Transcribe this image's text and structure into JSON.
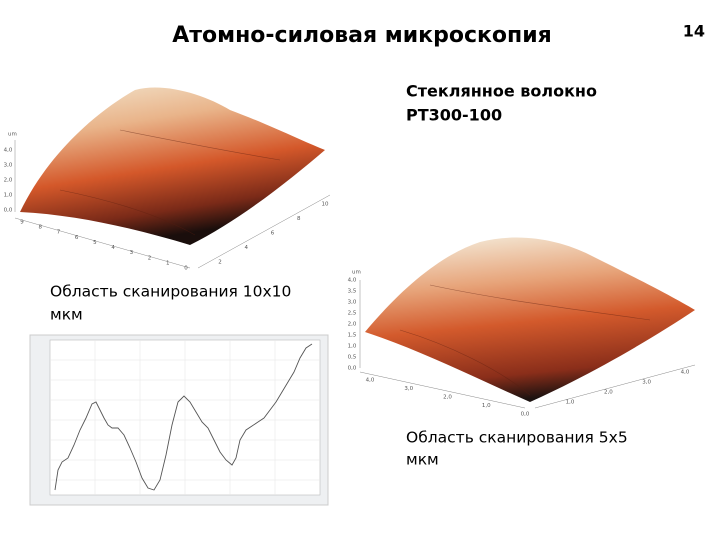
{
  "header": {
    "title": "Атомно-силовая микроскопия",
    "page_number": "14"
  },
  "sample": {
    "lines": [
      "Стеклянное волокно",
      "РТ300-100"
    ]
  },
  "panels": [
    {
      "caption": [
        "Область сканирования 10x10",
        "мкм"
      ],
      "unit": "um",
      "z_ticks": [
        "4,0",
        "3,0",
        "2,0",
        "1,0",
        "0,0"
      ],
      "x_ticks": [
        "9",
        "8",
        "7",
        "6",
        "5",
        "4",
        "3",
        "2",
        "1",
        "0"
      ],
      "y_ticks": [
        "2",
        "4",
        "6",
        "8",
        "10"
      ]
    },
    {
      "caption": [
        "Область сканирования 5x5",
        "мкм"
      ],
      "unit": "um",
      "z_ticks": [
        "4,0",
        "3,5",
        "3,0",
        "2,5",
        "2,0",
        "1,5",
        "1,0",
        "0,5",
        "0,0"
      ],
      "x_ticks": [
        "4,0",
        "3,0",
        "2,0",
        "1,0",
        "0,0"
      ],
      "y_ticks": [
        "1,0",
        "2,0",
        "3,0",
        "4,0"
      ]
    }
  ]
}
